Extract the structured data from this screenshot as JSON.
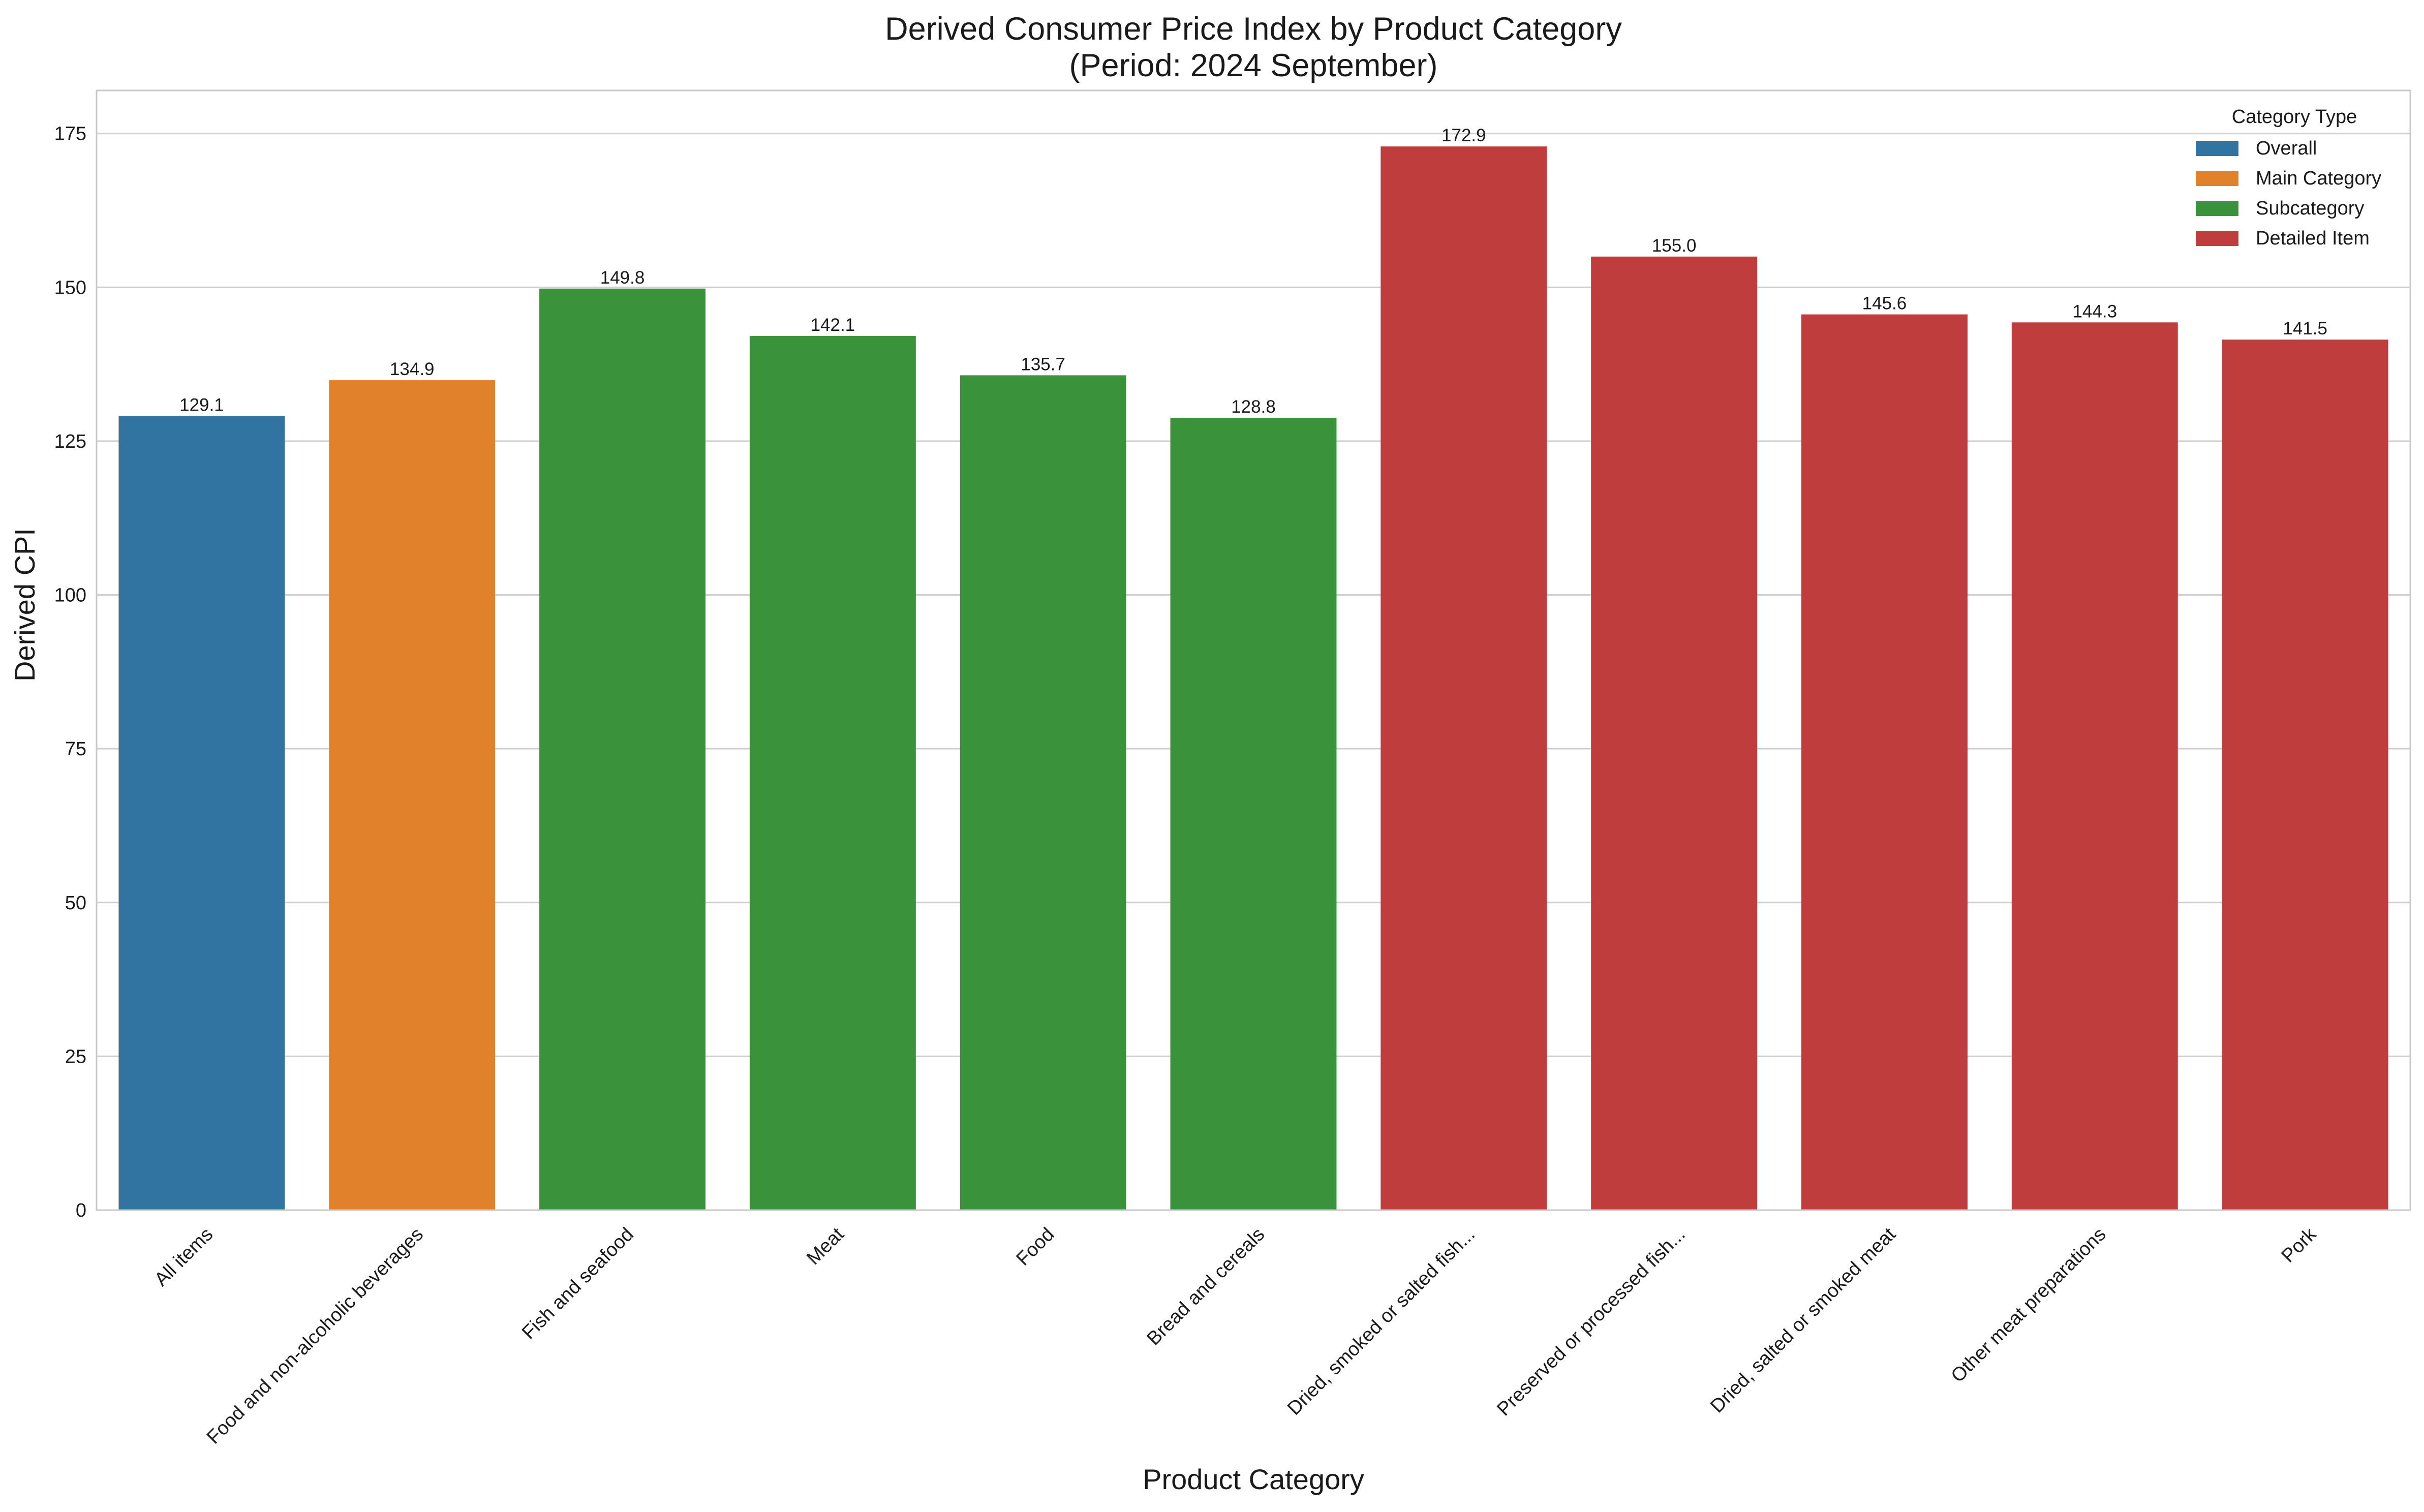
{
  "chart_data": {
    "type": "bar",
    "title": "Derived Consumer Price Index by Product Category",
    "subtitle": "(Period: 2024 September)",
    "xlabel": "Product Category",
    "ylabel": "Derived CPI",
    "ylim": [
      0,
      182
    ],
    "yticks": [
      0,
      25,
      50,
      75,
      100,
      125,
      150,
      175
    ],
    "grid": true,
    "legend": {
      "title": "Category Type",
      "placement": "top-right",
      "entries": [
        {
          "name": "Overall",
          "color": "#3274a1"
        },
        {
          "name": "Main Category",
          "color": "#e1812c"
        },
        {
          "name": "Subcategory",
          "color": "#3a923a"
        },
        {
          "name": "Detailed Item",
          "color": "#c03d3e"
        }
      ]
    },
    "categories": [
      "All items",
      "Food and non-alcoholic beverages",
      "Fish and seafood",
      "Meat",
      "Food",
      "Bread and cereals",
      "Dried, smoked or salted fish...",
      "Preserved or processed fish...",
      "Dried, salted or smoked meat",
      "Other meat preparations",
      "Pork"
    ],
    "values": [
      129.1,
      134.9,
      149.8,
      142.1,
      135.7,
      128.8,
      172.9,
      155.0,
      145.6,
      144.3,
      141.5
    ],
    "labels": [
      "129.1",
      "134.9",
      "149.8",
      "142.1",
      "135.7",
      "128.8",
      "172.9",
      "155.0",
      "145.6",
      "144.3",
      "141.5"
    ],
    "category_types": [
      "Overall",
      "Main Category",
      "Subcategory",
      "Subcategory",
      "Subcategory",
      "Subcategory",
      "Detailed Item",
      "Detailed Item",
      "Detailed Item",
      "Detailed Item",
      "Detailed Item"
    ]
  }
}
